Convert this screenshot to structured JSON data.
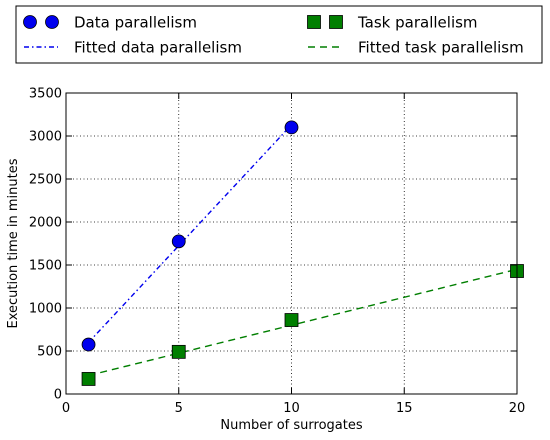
{
  "chart_data": {
    "type": "line",
    "title": "",
    "xlabel": "Number of surrogates",
    "ylabel": "Execution time in minutes",
    "xlim": [
      0,
      20
    ],
    "ylim": [
      0,
      3500
    ],
    "xticks": [
      0,
      5,
      10,
      15,
      20
    ],
    "xtick_labels": [
      "0",
      "5",
      "10",
      "15",
      "20"
    ],
    "yticks": [
      0,
      500,
      1000,
      1500,
      2000,
      2500,
      3000,
      3500
    ],
    "ytick_labels": [
      "0",
      "500",
      "1000",
      "1500",
      "2000",
      "2500",
      "3000",
      "3500"
    ],
    "grid": true,
    "grid_style": "dotted",
    "legend_position": "above plot",
    "series": [
      {
        "name": "Data parallelism",
        "kind": "scatter",
        "marker": "circle",
        "color": "#0000ee",
        "x": [
          1,
          5,
          10
        ],
        "y": [
          575,
          1775,
          3100
        ]
      },
      {
        "name": "Fitted data parallelism",
        "kind": "line",
        "linestyle": "dash-dot",
        "color": "#0000ee",
        "x": [
          1,
          10
        ],
        "y": [
          600,
          3130
        ]
      },
      {
        "name": "Task parallelism",
        "kind": "scatter",
        "marker": "square",
        "color": "#007f00",
        "x": [
          1,
          5,
          10,
          20
        ],
        "y": [
          175,
          490,
          860,
          1430
        ]
      },
      {
        "name": "Fitted task parallelism",
        "kind": "line",
        "linestyle": "dashed",
        "color": "#007f00",
        "x": [
          1,
          20
        ],
        "y": [
          215,
          1450
        ]
      }
    ]
  }
}
